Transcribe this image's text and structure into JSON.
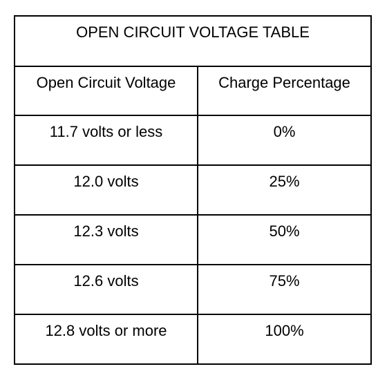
{
  "table": {
    "title": "OPEN CIRCUIT VOLTAGE TABLE",
    "header": [
      "Open Circuit Voltage",
      "Charge Percentage"
    ],
    "rows": [
      [
        "11.7 volts or less",
        "0%"
      ],
      [
        "12.0 volts",
        "25%"
      ],
      [
        "12.3 volts",
        "50%"
      ],
      [
        "12.6 volts",
        "75%"
      ],
      [
        "12.8 volts or more",
        "100%"
      ]
    ]
  }
}
